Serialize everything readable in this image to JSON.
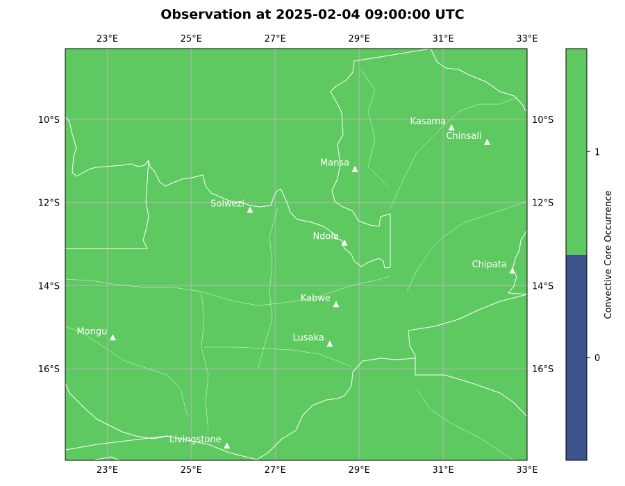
{
  "title": "Observation at 2025-02-04 09:00:00 UTC",
  "map": {
    "lon_range": [
      22,
      33
    ],
    "lat_range": [
      -18.2,
      -8.3
    ],
    "lon_ticks": [
      {
        "value": 23,
        "label": "23°E"
      },
      {
        "value": 25,
        "label": "25°E"
      },
      {
        "value": 27,
        "label": "27°E"
      },
      {
        "value": 29,
        "label": "29°E"
      },
      {
        "value": 31,
        "label": "31°E"
      },
      {
        "value": 33,
        "label": "33°E"
      }
    ],
    "lat_ticks": [
      {
        "value": -10,
        "label": "10°S"
      },
      {
        "value": -12,
        "label": "12°S"
      },
      {
        "value": -14,
        "label": "14°S"
      },
      {
        "value": -16,
        "label": "16°S"
      }
    ],
    "fill_color": "#5fc961",
    "grid_color": "#b5b5b5",
    "border_color": "#ffffff",
    "cities": [
      {
        "name": "Kasama",
        "lon": 31.2,
        "lat": -10.2
      },
      {
        "name": "Chinsali",
        "lon": 32.05,
        "lat": -10.55
      },
      {
        "name": "Mansa",
        "lon": 28.9,
        "lat": -11.2
      },
      {
        "name": "Solwezi",
        "lon": 26.4,
        "lat": -12.18
      },
      {
        "name": "Ndola",
        "lon": 28.65,
        "lat": -12.97
      },
      {
        "name": "Chipata",
        "lon": 32.65,
        "lat": -13.64
      },
      {
        "name": "Kabwe",
        "lon": 28.45,
        "lat": -14.45
      },
      {
        "name": "Mongu",
        "lon": 23.13,
        "lat": -15.25
      },
      {
        "name": "Lusaka",
        "lon": 28.3,
        "lat": -15.4
      },
      {
        "name": "Livingstone",
        "lon": 25.85,
        "lat": -17.85
      }
    ]
  },
  "colorbar": {
    "label": "Convective Core Occurrence",
    "ticks": [
      {
        "value": 1,
        "label": "1"
      },
      {
        "value": 0,
        "label": "0"
      }
    ],
    "colors": {
      "0": "#3e528c",
      "1": "#5fc961"
    }
  }
}
